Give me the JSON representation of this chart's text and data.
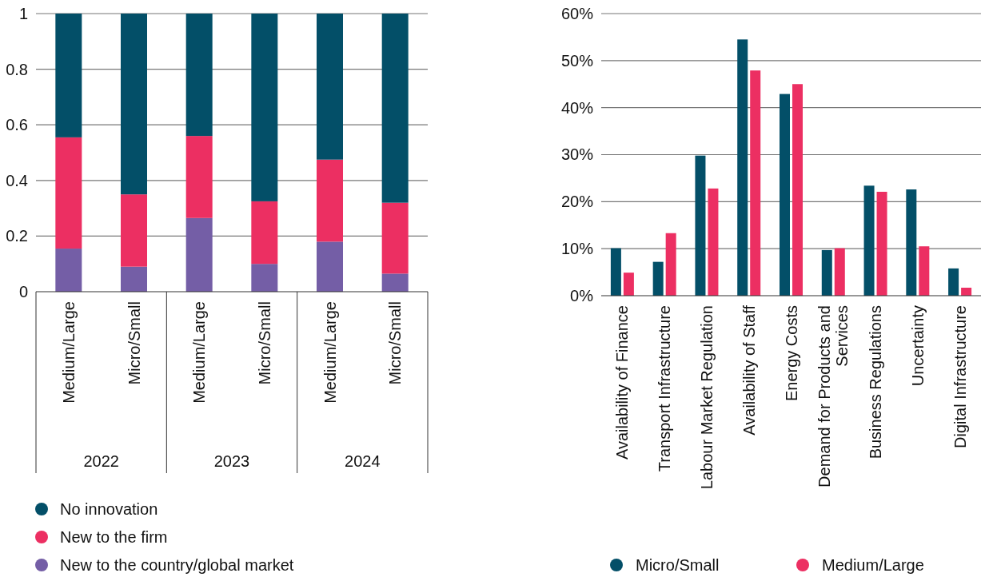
{
  "chart_data": [
    {
      "type": "bar",
      "stacked": true,
      "categories": [
        "Medium/Large",
        "Micro/Small",
        "Medium/Large",
        "Micro/Small",
        "Medium/Large",
        "Micro/Small"
      ],
      "annotations": [
        "2022",
        "2023",
        "2024"
      ],
      "series": [
        {
          "name": "New to the country/global market",
          "color": "#745ea6",
          "values": [
            0.155,
            0.09,
            0.265,
            0.1,
            0.18,
            0.065
          ]
        },
        {
          "name": "New to the firm",
          "color": "#ec2f62",
          "values": [
            0.4,
            0.26,
            0.295,
            0.225,
            0.295,
            0.255
          ]
        },
        {
          "name": "No innovation",
          "color": "#034f68",
          "values": [
            0.445,
            0.65,
            0.44,
            0.675,
            0.525,
            0.68
          ]
        }
      ],
      "ylim": [
        0,
        1
      ],
      "yticks": [
        0,
        0.2,
        0.4,
        0.6,
        0.8,
        1
      ],
      "grid": "y",
      "legend": "bottom left"
    },
    {
      "type": "bar",
      "categories": [
        "Availability of Finance",
        "Transport Infrastructure",
        "Labour Market Regulation",
        "Availability of Staff",
        "Energy Costs",
        "Demand for Products and Services",
        "Business Regulations",
        "Uncertainty",
        "Digital Infrastructure"
      ],
      "series": [
        {
          "name": "Micro/Small",
          "color": "#034f68",
          "values": [
            10.1,
            7.2,
            29.8,
            54.5,
            42.9,
            9.7,
            23.4,
            22.6,
            5.8
          ]
        },
        {
          "name": "Medium/Large",
          "color": "#ec2f62",
          "values": [
            4.9,
            13.3,
            22.8,
            47.9,
            45.0,
            10.1,
            22.1,
            10.5,
            1.7
          ]
        }
      ],
      "ylim": [
        0,
        60
      ],
      "yticks": [
        {
          "value": 0,
          "label": "0%"
        },
        {
          "value": 10,
          "label": "10%"
        },
        {
          "value": 20,
          "label": "20%"
        },
        {
          "value": 30,
          "label": "30%"
        },
        {
          "value": 40,
          "label": "40%"
        },
        {
          "value": 50,
          "label": "50%"
        },
        {
          "value": 60,
          "label": "60%"
        }
      ],
      "grid": "y",
      "legend": "bottom"
    }
  ]
}
